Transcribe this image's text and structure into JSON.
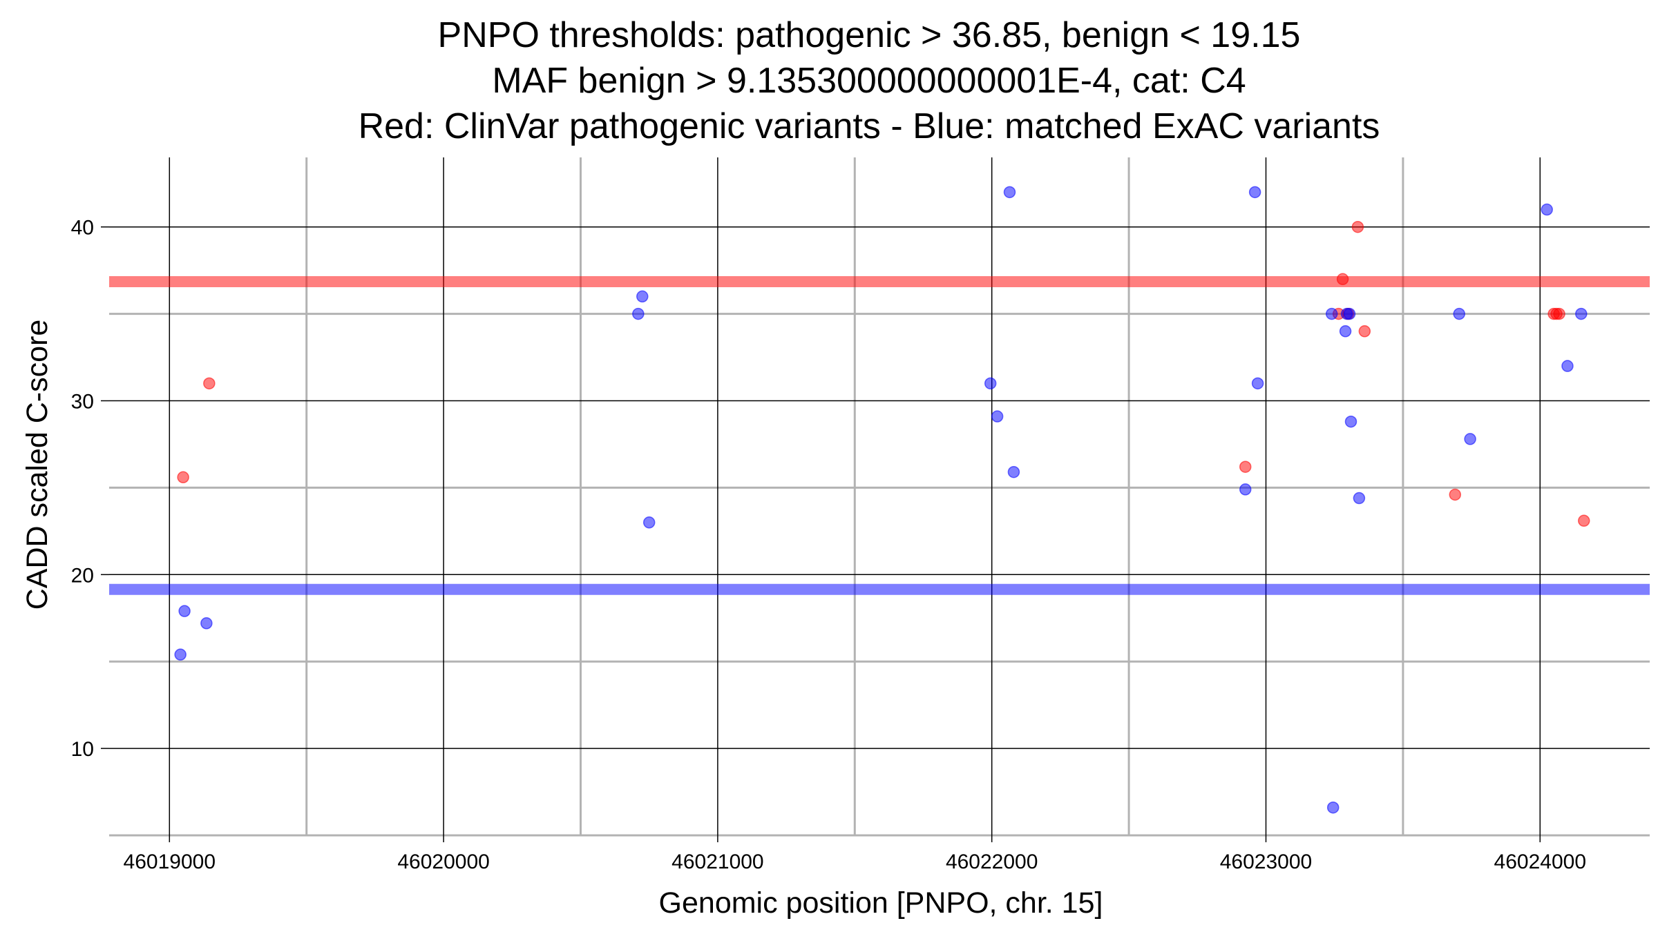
{
  "chart_data": {
    "type": "scatter",
    "title_lines": [
      "PNPO thresholds: pathogenic > 36.85, benign < 19.15",
      "MAF benign > 9.135300000000001E-4, cat: C4",
      "Red: ClinVar pathogenic variants - Blue: matched ExAC variants"
    ],
    "xlabel": "Genomic position [PNPO, chr. 15]",
    "ylabel": "CADD scaled C-score",
    "xlim": [
      46018780,
      46024400
    ],
    "ylim": [
      5,
      44
    ],
    "x_ticks": [
      46019000,
      46020000,
      46021000,
      46022000,
      46023000,
      46024000
    ],
    "x_tick_labels": [
      "46019000",
      "46020000",
      "46021000",
      "46022000",
      "46023000",
      "46024000"
    ],
    "y_ticks": [
      10,
      20,
      30,
      40
    ],
    "y_tick_labels": [
      "10",
      "20",
      "30",
      "40"
    ],
    "grid": true,
    "thresholds": [
      {
        "name": "pathogenic",
        "value": 36.85,
        "color": "#ff0000"
      },
      {
        "name": "benign",
        "value": 19.15,
        "color": "#0000ff"
      }
    ],
    "series": [
      {
        "color": "#ff0000",
        "points": [
          {
            "x": 46019050,
            "y": 25.6
          },
          {
            "x": 46019145,
            "y": 31
          },
          {
            "x": 46022925,
            "y": 26.2
          },
          {
            "x": 46023265,
            "y": 35
          },
          {
            "x": 46023280,
            "y": 37
          },
          {
            "x": 46023300,
            "y": 35
          },
          {
            "x": 46023335,
            "y": 40
          },
          {
            "x": 46023360,
            "y": 34
          },
          {
            "x": 46023690,
            "y": 24.6
          },
          {
            "x": 46024050,
            "y": 35
          },
          {
            "x": 46024060,
            "y": 35
          },
          {
            "x": 46024070,
            "y": 35
          },
          {
            "x": 46024160,
            "y": 23.1
          }
        ]
      },
      {
        "color": "#0000ff",
        "points": [
          {
            "x": 46019040,
            "y": 15.4
          },
          {
            "x": 46019055,
            "y": 17.9
          },
          {
            "x": 46019135,
            "y": 17.2
          },
          {
            "x": 46020710,
            "y": 35
          },
          {
            "x": 46020725,
            "y": 36
          },
          {
            "x": 46020750,
            "y": 23
          },
          {
            "x": 46021995,
            "y": 31
          },
          {
            "x": 46022020,
            "y": 29.1
          },
          {
            "x": 46022065,
            "y": 42
          },
          {
            "x": 46022080,
            "y": 25.9
          },
          {
            "x": 46022925,
            "y": 24.9
          },
          {
            "x": 46022960,
            "y": 42
          },
          {
            "x": 46022970,
            "y": 31
          },
          {
            "x": 46023245,
            "y": 6.6
          },
          {
            "x": 46023240,
            "y": 35
          },
          {
            "x": 46023290,
            "y": 34
          },
          {
            "x": 46023295,
            "y": 35
          },
          {
            "x": 46023305,
            "y": 35
          },
          {
            "x": 46023310,
            "y": 28.8
          },
          {
            "x": 46023340,
            "y": 24.4
          },
          {
            "x": 46023705,
            "y": 35
          },
          {
            "x": 46023745,
            "y": 27.8
          },
          {
            "x": 46024025,
            "y": 41
          },
          {
            "x": 46024100,
            "y": 32
          },
          {
            "x": 46024150,
            "y": 35
          }
        ]
      }
    ]
  }
}
